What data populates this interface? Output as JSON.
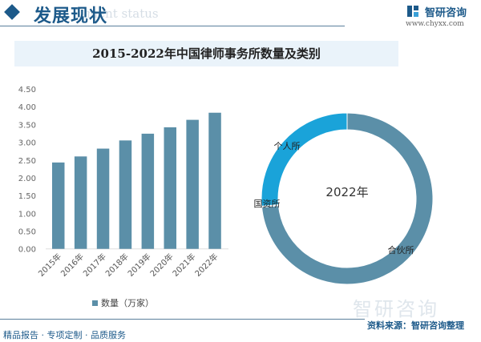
{
  "header": {
    "title": "发展现状",
    "subtitle_faded": "ment status",
    "logo_text": "智研咨询",
    "logo_url": "www.chyxx.com"
  },
  "chart_title": "2015-2022年中国律师事务所数量及类别",
  "colors": {
    "bar": "#5b8fa8",
    "partnership": "#5b8fa8",
    "individual": "#1aa3d9",
    "state": "#2f6f8f",
    "accent": "#1d5a8a"
  },
  "chart_data": [
    {
      "type": "bar",
      "categories": [
        "2015年",
        "2016年",
        "2017年",
        "2018年",
        "2019年",
        "2020年",
        "2021年",
        "2022年"
      ],
      "series": [
        {
          "name": "数量（万家）",
          "values": [
            2.43,
            2.6,
            2.82,
            3.05,
            3.24,
            3.42,
            3.63,
            3.83
          ]
        }
      ],
      "ylim": [
        0,
        4.5
      ],
      "yticks": [
        "0.00",
        "0.50",
        "1.00",
        "1.50",
        "2.00",
        "2.50",
        "3.00",
        "3.50",
        "4.00",
        "4.50"
      ],
      "grid": false,
      "legend": "bottom"
    },
    {
      "type": "pie",
      "donut": true,
      "center_label": "2022年",
      "labels": [
        "合伙所",
        "国资所",
        "个人所"
      ],
      "values": [
        73.4,
        0.2,
        26.4
      ]
    }
  ],
  "legend_label": "数量（万家）",
  "footer": {
    "left": "精品报告 · 专项定制 · 品质服务",
    "source": "资料来源：智研咨询整理",
    "watermark": "智研咨询"
  }
}
